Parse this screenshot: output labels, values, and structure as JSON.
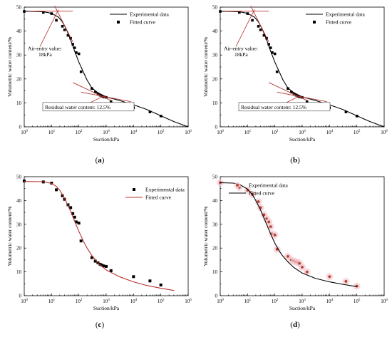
{
  "chart_data": [
    {
      "panel": "a",
      "type": "scatter",
      "xlabel": "Suction/kPa",
      "ylabel": "Volumetric water content/%",
      "xscale": "log",
      "xlim": [
        1,
        1000000
      ],
      "ylim": [
        0,
        50
      ],
      "x_ticks": [
        "10^0",
        "10^1",
        "10^2",
        "10^3",
        "10^4",
        "10^5",
        "10^6"
      ],
      "y_ticks": [
        0,
        10,
        20,
        30,
        40,
        50
      ],
      "legend": {
        "position": "top-right",
        "entries": [
          {
            "label": "Experimental data",
            "style": "line",
            "color": "#000000"
          },
          {
            "label": "Fitted curve",
            "style": "marker",
            "color": "#000000"
          }
        ]
      },
      "series": [
        {
          "name": "Experimental data",
          "kind": "line",
          "color": "#000000",
          "x": [
            1,
            5,
            10,
            18,
            25,
            35,
            50,
            70,
            100,
            150,
            200,
            300,
            500,
            1000,
            3000,
            10000,
            30000,
            100000,
            300000,
            1000000
          ],
          "y": [
            48.3,
            48.1,
            47.4,
            45.8,
            43.8,
            40.7,
            36.3,
            31.6,
            27.0,
            22.6,
            19.5,
            16.2,
            14.2,
            12.5,
            11.0,
            9.2,
            7.3,
            4.6,
            2.2,
            0
          ]
        },
        {
          "name": "Fitted curve",
          "kind": "marker",
          "color": "#000000",
          "x": [
            1,
            5,
            10,
            15,
            25,
            30,
            40,
            50,
            60,
            70,
            80,
            100,
            120,
            300,
            400,
            500,
            600,
            700,
            800,
            1000,
            1500,
            10000,
            40000,
            100000
          ],
          "y": [
            48.2,
            47.8,
            47.3,
            44.5,
            42.0,
            40.5,
            38.2,
            37.0,
            34.5,
            33.0,
            31.0,
            30.5,
            23.0,
            16.0,
            14.5,
            13.8,
            13.2,
            12.8,
            12.5,
            12.3,
            10.5,
            8.0,
            6.2,
            4.5
          ]
        }
      ],
      "annotations": {
        "air_entry": [
          "Air-entry value:",
          "18kPa"
        ],
        "residual": "Residual water content:  12.5%"
      }
    },
    {
      "panel": "b",
      "type": "scatter",
      "xlabel": "Suction/kPa",
      "ylabel": "Volumetric water content/%",
      "xscale": "log",
      "xlim": [
        1,
        1000000
      ],
      "ylim": [
        0,
        50
      ],
      "x_ticks": [
        "10^0",
        "10^1",
        "10^2",
        "10^3",
        "10^4",
        "10^5",
        "10^6"
      ],
      "y_ticks": [
        0,
        10,
        20,
        30,
        40,
        50
      ],
      "legend": {
        "position": "top-right",
        "entries": [
          {
            "label": "Experimental data",
            "style": "line",
            "color": "#000000"
          },
          {
            "label": "Fitted curve",
            "style": "marker",
            "color": "#000000"
          }
        ]
      },
      "series": [
        {
          "name": "Experimental data",
          "kind": "line",
          "color": "#000000",
          "x": [
            1,
            5,
            10,
            18,
            25,
            35,
            50,
            70,
            100,
            150,
            200,
            300,
            500,
            1000,
            3000,
            10000,
            30000,
            100000,
            300000,
            1000000
          ],
          "y": [
            48.3,
            48.1,
            47.4,
            45.8,
            43.8,
            40.7,
            36.3,
            31.6,
            27.0,
            22.6,
            19.5,
            16.2,
            14.2,
            12.5,
            11.0,
            9.2,
            7.3,
            4.6,
            2.2,
            0
          ]
        },
        {
          "name": "Fitted curve",
          "kind": "marker",
          "color": "#000000",
          "x": [
            1,
            5,
            10,
            15,
            25,
            30,
            40,
            50,
            60,
            70,
            80,
            100,
            120,
            300,
            400,
            500,
            600,
            700,
            800,
            1000,
            1500,
            10000,
            40000,
            100000
          ],
          "y": [
            48.2,
            47.8,
            47.3,
            44.5,
            42.0,
            40.5,
            38.2,
            37.0,
            34.5,
            33.0,
            31.0,
            30.5,
            23.0,
            16.0,
            14.5,
            13.8,
            13.2,
            12.8,
            12.5,
            12.3,
            10.5,
            8.0,
            6.2,
            4.5
          ]
        }
      ],
      "annotations": {
        "air_entry": [
          "Air-entry value:",
          "18kPa"
        ],
        "residual": "Residual water content:  12.5%"
      }
    },
    {
      "panel": "c",
      "type": "scatter",
      "xlabel": "Suction/kPa",
      "ylabel": "Volumetric water content/%",
      "xscale": "log",
      "xlim": [
        1,
        1000000
      ],
      "ylim": [
        0,
        50
      ],
      "x_ticks": [
        "10^0",
        "10^1",
        "10^2",
        "10^3",
        "10^4",
        "10^5",
        "10^6"
      ],
      "y_ticks": [
        0,
        10,
        20,
        30,
        40,
        50
      ],
      "legend": {
        "position": "top-right",
        "entries": [
          {
            "label": "Experimental data",
            "style": "marker",
            "color": "#000000"
          },
          {
            "label": "Fitted curve",
            "style": "line",
            "color": "#b5332e"
          }
        ]
      },
      "series": [
        {
          "name": "Experimental data",
          "kind": "marker",
          "color": "#000000",
          "x": [
            1,
            5,
            10,
            15,
            25,
            30,
            40,
            50,
            60,
            70,
            80,
            100,
            120,
            300,
            400,
            500,
            600,
            700,
            800,
            1000,
            1500,
            10000,
            40000,
            100000
          ],
          "y": [
            48.2,
            47.8,
            47.3,
            44.5,
            42.0,
            40.5,
            38.2,
            37.0,
            34.5,
            33.0,
            31.0,
            30.5,
            23.0,
            16.0,
            14.5,
            13.8,
            13.2,
            12.8,
            12.5,
            12.3,
            10.5,
            8.0,
            6.2,
            4.5
          ]
        },
        {
          "name": "Fitted curve",
          "kind": "line",
          "color": "#b5332e",
          "x": [
            1,
            5,
            10,
            15,
            20,
            30,
            50,
            70,
            100,
            150,
            200,
            300,
            500,
            1000,
            3000,
            10000,
            30000,
            100000,
            300000
          ],
          "y": [
            48.0,
            47.9,
            47.2,
            45.9,
            44.3,
            41.0,
            35.4,
            31.3,
            27.0,
            22.7,
            20.0,
            16.8,
            13.8,
            10.8,
            8.0,
            5.8,
            4.3,
            3.1,
            2.2
          ]
        }
      ]
    },
    {
      "panel": "d",
      "type": "scatter",
      "xlabel": "Suction/kPa",
      "ylabel": "Volumetric water content/%",
      "xscale": "log",
      "xlim": [
        1,
        1000000
      ],
      "ylim": [
        0,
        50
      ],
      "x_ticks": [
        "10^0",
        "10^1",
        "10^2",
        "10^3",
        "10^4",
        "10^5",
        "10^6"
      ],
      "y_ticks": [
        0,
        10,
        20,
        30,
        40,
        50
      ],
      "legend": {
        "position": "top-left",
        "entries": [
          {
            "label": "Experimental data",
            "style": "marker",
            "color": "#b5412e"
          },
          {
            "label": "Fitted curve",
            "style": "line",
            "color": "#000000"
          }
        ]
      },
      "series": [
        {
          "name": "Experimental data",
          "kind": "marker",
          "color": "#b5412e",
          "x": [
            1,
            5,
            10,
            15,
            25,
            30,
            40,
            50,
            60,
            70,
            80,
            100,
            120,
            300,
            400,
            500,
            600,
            700,
            800,
            1000,
            1500,
            10000,
            40000,
            100000
          ],
          "y": [
            47.5,
            45.5,
            44.3,
            42.5,
            39.5,
            37.0,
            34.0,
            32.3,
            31.0,
            29.0,
            26.0,
            25.5,
            19.5,
            16.5,
            15.0,
            14.5,
            14.2,
            14.0,
            13.5,
            12.0,
            10.0,
            8.0,
            6.0,
            4.0
          ]
        },
        {
          "name": "Fitted curve",
          "kind": "line",
          "color": "#000000",
          "x": [
            1,
            3,
            5,
            10,
            15,
            20,
            30,
            50,
            70,
            100,
            150,
            200,
            300,
            500,
            1000,
            3000,
            10000,
            30000,
            100000
          ],
          "y": [
            47.5,
            47.3,
            46.8,
            44.8,
            42.5,
            40.0,
            36.0,
            30.0,
            26.0,
            22.0,
            18.5,
            16.5,
            14.2,
            11.8,
            9.5,
            7.3,
            5.8,
            4.8,
            3.8
          ]
        }
      ]
    }
  ],
  "panel_labels": [
    "(a)",
    "(b)",
    "(c)",
    "(d)"
  ]
}
